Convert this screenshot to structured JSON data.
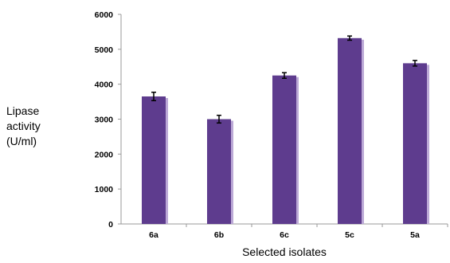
{
  "chart_data": {
    "type": "bar",
    "categories": [
      "6a",
      "6b",
      "6c",
      "5c",
      "5a"
    ],
    "values": [
      3650,
      3000,
      4250,
      5320,
      4600
    ],
    "errors": [
      120,
      110,
      80,
      60,
      80
    ],
    "ylabel_lines": [
      "Lipase",
      "activity",
      "(U/ml)"
    ],
    "xlabel": "Selected isolates",
    "ylim": [
      0,
      6000
    ],
    "yticks": [
      "0",
      "1000",
      "2000",
      "3000",
      "4000",
      "5000",
      "6000"
    ],
    "grid": false,
    "legend": "none",
    "bar_color": "#5e3c8e",
    "bar_shadow_color": "#bca9d6"
  }
}
